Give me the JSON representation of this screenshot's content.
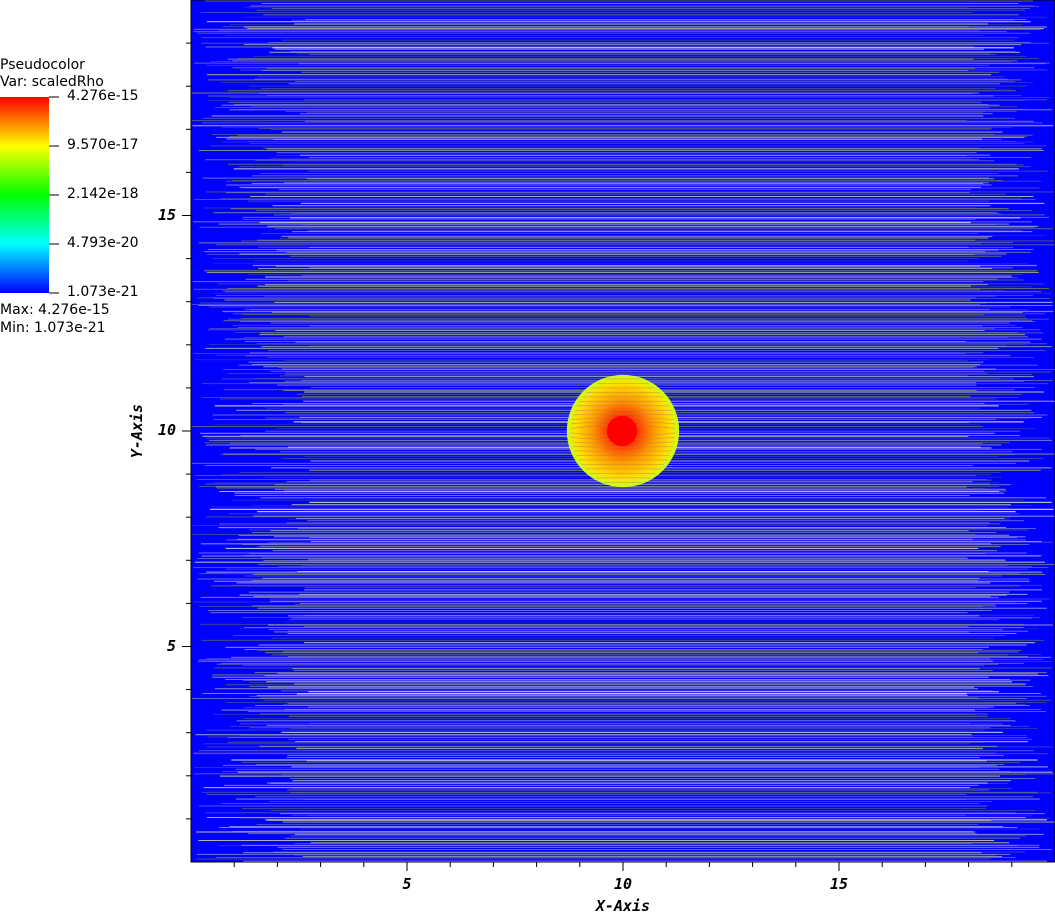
{
  "legend": {
    "plot_type": "Pseudocolor",
    "var_line": "Var: scaledRho",
    "max_line": "Max:  4.276e-15",
    "min_line": "Min:  1.073e-21",
    "colorbar_labels": [
      "4.276e-15",
      "9.570e-17",
      "2.142e-18",
      "4.793e-20",
      "1.073e-21"
    ],
    "colorbar_colors": [
      "#ff0000",
      "#ffff00",
      "#00ff00",
      "#00ffff",
      "#0000ff"
    ]
  },
  "chart_data": {
    "type": "heatmap",
    "variable": "scaledRho",
    "xlabel": "X-Axis",
    "ylabel": "Y-Axis",
    "xlim": [
      0,
      20
    ],
    "ylim": [
      0,
      20
    ],
    "x_ticks": [
      "5",
      "10",
      "15"
    ],
    "y_ticks": [
      "5",
      "10",
      "15"
    ],
    "x_tick_values": [
      5,
      10,
      15
    ],
    "y_tick_values": [
      5,
      10,
      15
    ],
    "color_scale": "log",
    "value_max": 4.276e-15,
    "value_min": 1.073e-21,
    "background_color": "#0000ff",
    "features": [
      {
        "kind": "circle",
        "center": [
          10,
          10
        ],
        "radius": 1.3,
        "edge_color": "#c8ff1a",
        "mid_color": "#ffb000"
      },
      {
        "kind": "core",
        "center": [
          10,
          10
        ],
        "radius": 0.35,
        "color": "#ff0000"
      }
    ],
    "overlay": "horizontal grey streamlines"
  }
}
